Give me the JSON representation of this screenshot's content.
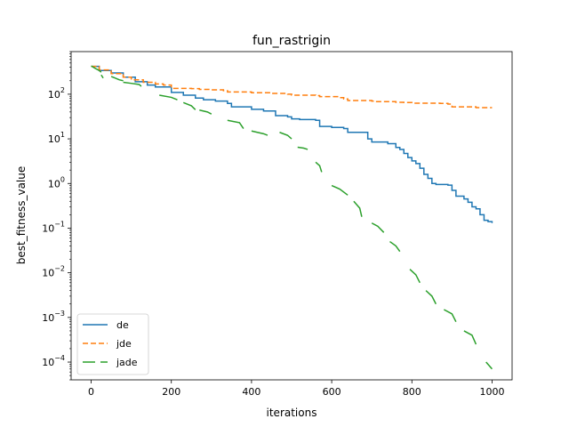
{
  "chart_data": {
    "type": "line",
    "title": "fun_rastrigin",
    "xlabel": "iterations",
    "ylabel": "best_fitness_value",
    "xlim": [
      -50,
      1050
    ],
    "ylim": [
      4e-05,
      900
    ],
    "yscale": "log",
    "grid": false,
    "legend_position": "lower-left",
    "x_ticks": [
      0,
      200,
      400,
      600,
      800,
      1000
    ],
    "x_tick_labels": [
      "0",
      "200",
      "400",
      "600",
      "800",
      "1000"
    ],
    "y_ticks": [
      0.0001,
      0.001,
      0.01,
      0.1,
      1,
      10,
      100
    ],
    "y_tick_labels": [
      {
        "base": "10",
        "exp": "−4"
      },
      {
        "base": "10",
        "exp": "−3"
      },
      {
        "base": "10",
        "exp": "−2"
      },
      {
        "base": "10",
        "exp": "−1"
      },
      {
        "base": "10",
        "exp": "0"
      },
      {
        "base": "10",
        "exp": "1"
      },
      {
        "base": "10",
        "exp": "2"
      }
    ],
    "series": [
      {
        "name": "de",
        "color": "#1f77b4",
        "style": "solid",
        "points": [
          [
            0,
            420
          ],
          [
            20,
            340
          ],
          [
            50,
            300
          ],
          [
            80,
            240
          ],
          [
            110,
            190
          ],
          [
            140,
            160
          ],
          [
            160,
            145
          ],
          [
            200,
            110
          ],
          [
            230,
            95
          ],
          [
            260,
            82
          ],
          [
            280,
            75
          ],
          [
            310,
            70
          ],
          [
            340,
            62
          ],
          [
            350,
            52
          ],
          [
            380,
            52
          ],
          [
            400,
            46
          ],
          [
            430,
            42
          ],
          [
            460,
            33
          ],
          [
            490,
            31
          ],
          [
            500,
            28
          ],
          [
            520,
            27
          ],
          [
            560,
            26
          ],
          [
            570,
            19
          ],
          [
            600,
            18
          ],
          [
            630,
            17
          ],
          [
            640,
            14
          ],
          [
            680,
            14
          ],
          [
            690,
            10
          ],
          [
            700,
            8.5
          ],
          [
            740,
            7.8
          ],
          [
            760,
            6.4
          ],
          [
            770,
            5.8
          ],
          [
            780,
            4.7
          ],
          [
            790,
            3.8
          ],
          [
            800,
            3.2
          ],
          [
            810,
            2.8
          ],
          [
            820,
            2.2
          ],
          [
            830,
            1.6
          ],
          [
            840,
            1.3
          ],
          [
            850,
            1.0
          ],
          [
            860,
            0.95
          ],
          [
            890,
            0.92
          ],
          [
            900,
            0.7
          ],
          [
            910,
            0.52
          ],
          [
            930,
            0.45
          ],
          [
            940,
            0.38
          ],
          [
            950,
            0.3
          ],
          [
            960,
            0.27
          ],
          [
            970,
            0.2
          ],
          [
            980,
            0.15
          ],
          [
            990,
            0.14
          ],
          [
            1000,
            0.13
          ]
        ]
      },
      {
        "name": "jde",
        "color": "#ff7f0e",
        "style": "dashed",
        "points": [
          [
            0,
            420
          ],
          [
            20,
            350
          ],
          [
            50,
            290
          ],
          [
            80,
            240
          ],
          [
            100,
            210
          ],
          [
            130,
            185
          ],
          [
            160,
            170
          ],
          [
            180,
            160
          ],
          [
            200,
            135
          ],
          [
            250,
            133
          ],
          [
            270,
            128
          ],
          [
            300,
            125
          ],
          [
            330,
            120
          ],
          [
            340,
            112
          ],
          [
            400,
            108
          ],
          [
            450,
            104
          ],
          [
            490,
            100
          ],
          [
            500,
            95
          ],
          [
            560,
            93
          ],
          [
            570,
            88
          ],
          [
            620,
            84
          ],
          [
            630,
            78
          ],
          [
            640,
            72
          ],
          [
            700,
            70
          ],
          [
            710,
            68
          ],
          [
            760,
            66
          ],
          [
            780,
            65
          ],
          [
            800,
            63
          ],
          [
            870,
            62
          ],
          [
            890,
            60
          ],
          [
            900,
            52
          ],
          [
            960,
            50
          ],
          [
            1000,
            50
          ]
        ]
      },
      {
        "name": "jade",
        "color": "#2ca02c",
        "style": "long-dashed",
        "segments": [
          [
            [
              0,
              430
            ],
            [
              10,
              380
            ],
            [
              20,
              340
            ],
            [
              25,
              310
            ]
          ],
          [
            [
              25,
              270
            ],
            [
              30,
              230
            ]
          ],
          [
            [
              50,
              250
            ],
            [
              70,
              210
            ],
            [
              80,
              200
            ]
          ],
          [
            [
              80,
              185
            ],
            [
              100,
              175
            ],
            [
              120,
              165
            ],
            [
              125,
              150
            ]
          ],
          [
            [
              170,
              95
            ],
            [
              200,
              85
            ],
            [
              215,
              75
            ]
          ],
          [
            [
              230,
              65
            ],
            [
              250,
              55
            ],
            [
              260,
              45
            ]
          ],
          [
            [
              270,
              44
            ],
            [
              290,
              40
            ],
            [
              300,
              36
            ]
          ],
          [
            [
              340,
              26
            ],
            [
              370,
              23
            ],
            [
              380,
              17
            ]
          ],
          [
            [
              400,
              15
            ],
            [
              430,
              13
            ],
            [
              440,
              12
            ]
          ],
          [
            [
              470,
              14
            ],
            [
              490,
              12
            ],
            [
              500,
              10
            ]
          ],
          [
            [
              515,
              6.5
            ],
            [
              530,
              6.2
            ],
            [
              540,
              5.8
            ]
          ],
          [
            [
              560,
              3.0
            ],
            [
              570,
              2.5
            ],
            [
              575,
              1.8
            ]
          ],
          [
            [
              600,
              0.9
            ],
            [
              620,
              0.75
            ],
            [
              640,
              0.55
            ]
          ],
          [
            [
              655,
              0.4
            ],
            [
              670,
              0.28
            ],
            [
              675,
              0.18
            ]
          ],
          [
            [
              700,
              0.13
            ],
            [
              715,
              0.11
            ],
            [
              730,
              0.08
            ]
          ],
          [
            [
              745,
              0.05
            ],
            [
              760,
              0.04
            ],
            [
              770,
              0.03
            ]
          ],
          [
            [
              795,
              0.012
            ],
            [
              810,
              0.009
            ],
            [
              820,
              0.006
            ]
          ],
          [
            [
              835,
              0.004
            ],
            [
              850,
              0.003
            ],
            [
              860,
              0.002
            ]
          ],
          [
            [
              880,
              0.0015
            ],
            [
              900,
              0.0012
            ],
            [
              910,
              0.0008
            ]
          ],
          [
            [
              930,
              0.0005
            ],
            [
              950,
              0.0004
            ],
            [
              960,
              0.00025
            ]
          ],
          [
            [
              985,
              0.0001
            ],
            [
              1000,
              7e-05
            ]
          ]
        ]
      }
    ]
  }
}
